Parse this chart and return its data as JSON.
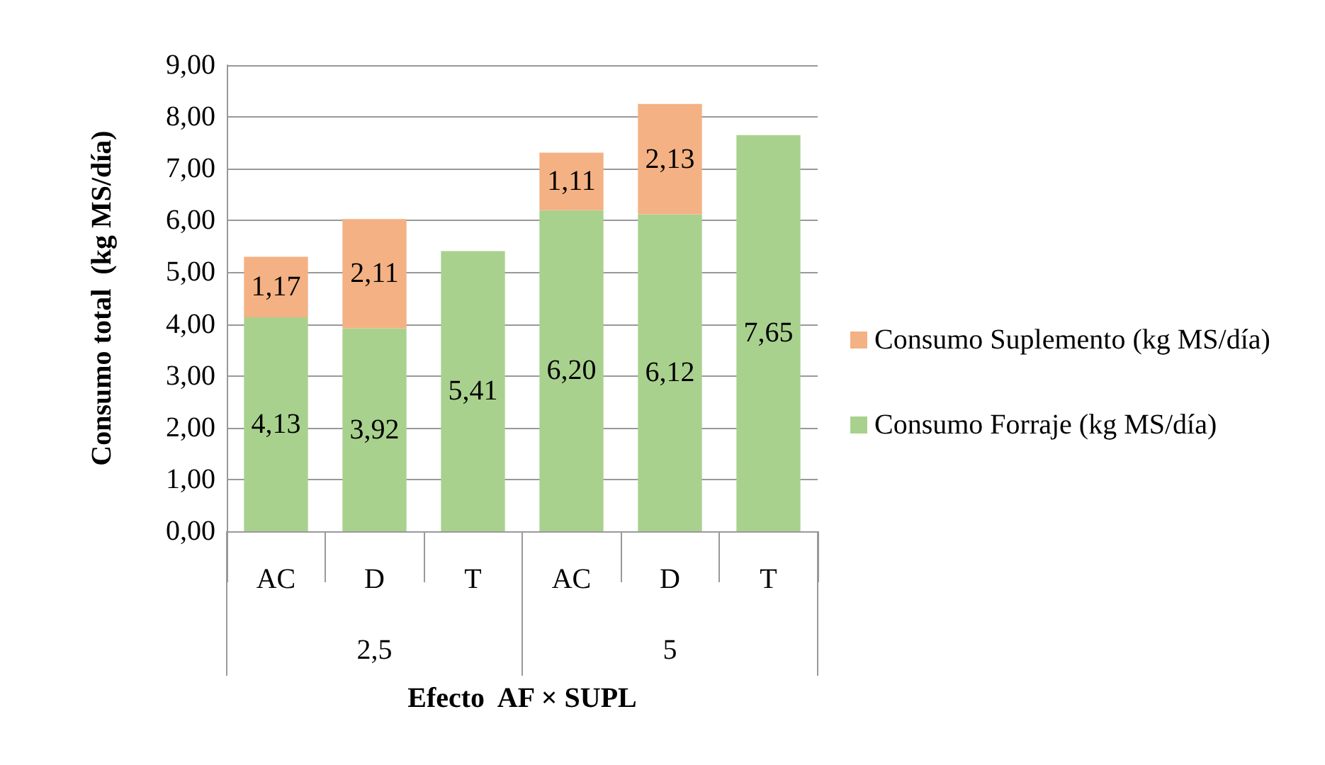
{
  "chart_data": {
    "type": "bar",
    "stacked": true,
    "ylabel": "Consumo total  (kg MS/día)",
    "xlabel": "Efecto  AF × SUPL",
    "categories": [
      "AC",
      "D",
      "T",
      "AC",
      "D",
      "T"
    ],
    "annotations": [
      "2,5",
      "5"
    ],
    "series": [
      {
        "name": "Consumo Forraje (kg MS/día)",
        "color": "#a9d18e",
        "values": [
          4.13,
          3.92,
          5.41,
          6.2,
          6.12,
          7.65
        ],
        "value_labels": [
          "4,13",
          "3,92",
          "5,41",
          "6,20",
          "6,12",
          "7,65"
        ]
      },
      {
        "name": "Consumo Suplemento (kg MS/día)",
        "color": "#f4b183",
        "values": [
          1.17,
          2.11,
          null,
          1.11,
          2.13,
          null
        ],
        "value_labels": [
          "1,17",
          "2,11",
          null,
          "1,11",
          "2,13",
          null
        ]
      }
    ],
    "ylim": [
      0,
      9
    ],
    "yticks": [
      {
        "value": 0,
        "label": "0,00"
      },
      {
        "value": 1,
        "label": "1,00"
      },
      {
        "value": 2,
        "label": "2,00"
      },
      {
        "value": 3,
        "label": "3,00"
      },
      {
        "value": 4,
        "label": "4,00"
      },
      {
        "value": 5,
        "label": "5,00"
      },
      {
        "value": 6,
        "label": "6,00"
      },
      {
        "value": 7,
        "label": "7,00"
      },
      {
        "value": 8,
        "label": "8,00"
      },
      {
        "value": 9,
        "label": "9,00"
      }
    ],
    "grid": "y",
    "legend": "right"
  }
}
